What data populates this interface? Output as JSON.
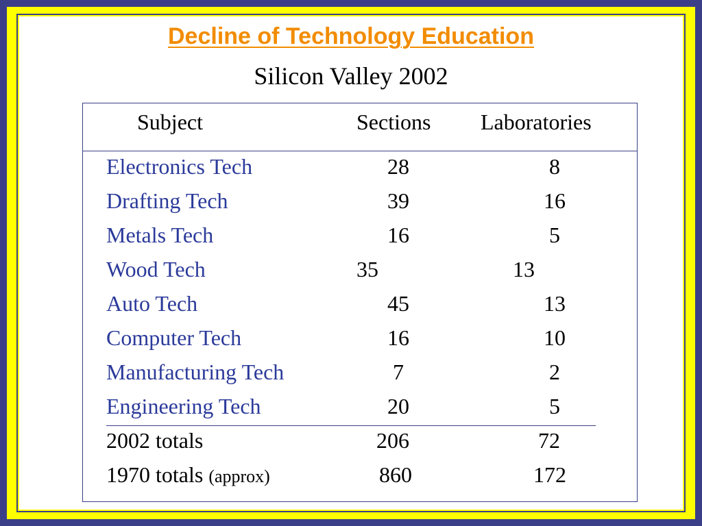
{
  "slide": {
    "title": "Decline of Technology Education",
    "subtitle": "Silicon Valley 2002"
  },
  "table": {
    "headers": {
      "subject": "Subject",
      "sections": "Sections",
      "laboratories": "Laboratories"
    },
    "rows": [
      {
        "subject": "Electronics Tech",
        "sections": "28",
        "laboratories": "8"
      },
      {
        "subject": "Drafting Tech",
        "sections": "39",
        "laboratories": "16"
      },
      {
        "subject": "Metals Tech",
        "sections": "16",
        "laboratories": "5"
      },
      {
        "subject": "Wood Tech",
        "sections": "35",
        "laboratories": "13"
      },
      {
        "subject": "Auto Tech",
        "sections": "45",
        "laboratories": "13"
      },
      {
        "subject": "Computer Tech",
        "sections": "16",
        "laboratories": "10"
      },
      {
        "subject": "Manufacturing Tech",
        "sections": "7",
        "laboratories": "2"
      },
      {
        "subject": "Engineering Tech",
        "sections": "20",
        "laboratories": "5"
      }
    ],
    "totals": [
      {
        "label": "2002 totals",
        "note": "",
        "sections": "206",
        "laboratories": "72"
      },
      {
        "label": "1970 totals",
        "note": "(approx)",
        "sections": "860",
        "laboratories": "172"
      }
    ]
  },
  "colors": {
    "frame": "#3a3f87",
    "border_fill": "#ffff00",
    "title": "#f28c00",
    "row_text": "#2b3a9a"
  }
}
